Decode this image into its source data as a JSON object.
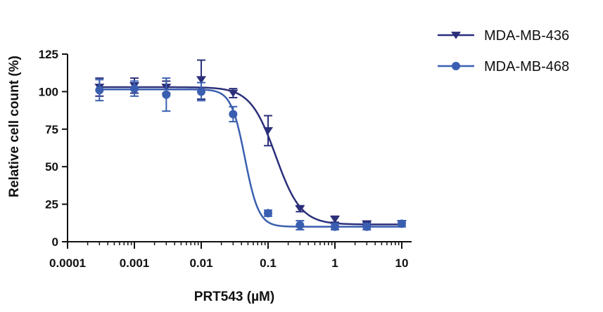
{
  "chart_data": {
    "type": "scatter",
    "title": "",
    "xlabel": "PRT543 (µM)",
    "ylabel": "Relative cell count (%)",
    "x_scale": "log",
    "xlim": [
      0.0001,
      10
    ],
    "ylim": [
      0,
      125
    ],
    "x_ticks": [
      0.0001,
      0.001,
      0.01,
      0.1,
      1,
      10
    ],
    "x_tick_labels": [
      "0.0001",
      "0.001",
      "0.01",
      "0.1",
      "1",
      "10"
    ],
    "y_ticks": [
      0,
      25,
      50,
      75,
      100,
      125
    ],
    "y_tick_labels": [
      "0",
      "25",
      "50",
      "75",
      "100",
      "125"
    ],
    "grid": false,
    "legend_position": "top-right",
    "x": [
      0.0003,
      0.001,
      0.003,
      0.01,
      0.03,
      0.1,
      0.3,
      1,
      3,
      10
    ],
    "series": [
      {
        "name": "MDA-MB-436",
        "marker": "triangle-down",
        "color": "#2b2f7a",
        "values": [
          103,
          104,
          103,
          108,
          99,
          74,
          22,
          15,
          12,
          12
        ],
        "error": [
          6,
          5,
          4,
          13,
          3,
          10,
          2,
          2,
          1,
          2
        ],
        "fit": {
          "top": 103,
          "bottom": 11.5,
          "ic50": 0.13,
          "hill": 2.3
        }
      },
      {
        "name": "MDA-MB-468",
        "marker": "circle",
        "color": "#3a5fb0",
        "values": [
          101,
          102,
          98,
          100,
          85,
          19,
          11,
          10,
          10,
          12
        ],
        "error": [
          7,
          5,
          11,
          6,
          5,
          2,
          3,
          2,
          2,
          2
        ],
        "fit": {
          "top": 101.5,
          "bottom": 10,
          "ic50": 0.045,
          "hill": 4.2
        }
      }
    ]
  }
}
